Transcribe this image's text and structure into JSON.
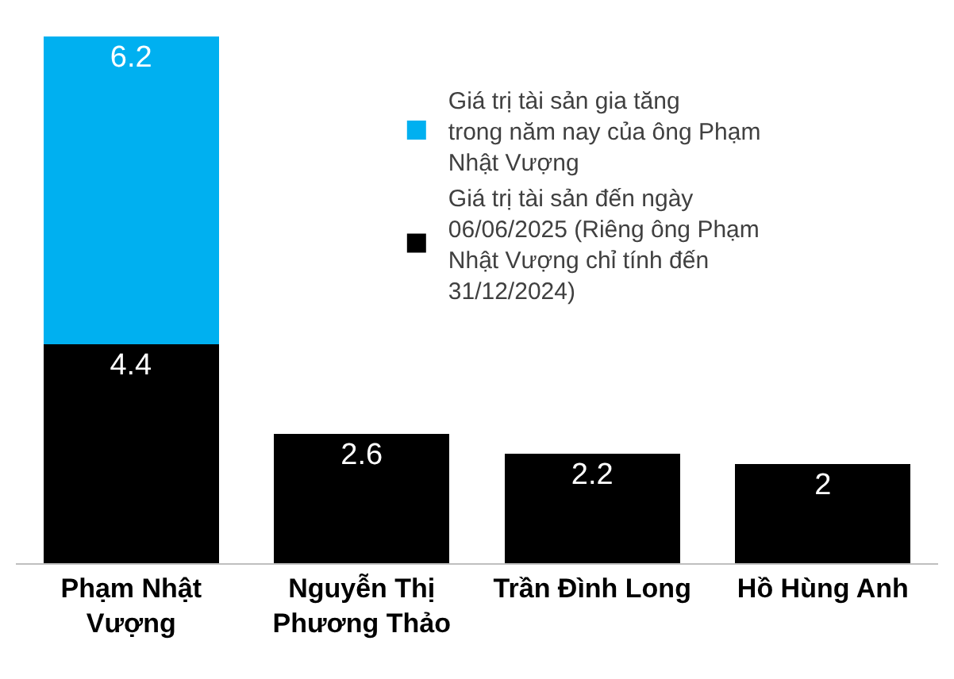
{
  "chart_data": {
    "type": "bar",
    "stacked": true,
    "data_labels": true,
    "legend": "top right",
    "categories": [
      "Phạm Nhật Vượng",
      "Nguyễn Thị Phương Thảo",
      "Trần Đình Long",
      "Hồ Hùng Anh"
    ],
    "series": [
      {
        "name": "Giá trị tài sản đến ngày 06/06/2025 (Riêng ông Phạm Nhật Vượng chỉ tính đến 31/12/2024)",
        "color": "#000000",
        "values": [
          4.4,
          2.6,
          2.2,
          2
        ]
      },
      {
        "name": "Giá trị tài sản gia tăng trong năm nay của ông Phạm Nhật Vượng",
        "color": "#00b0f0",
        "values": [
          6.2,
          null,
          null,
          null
        ]
      }
    ]
  }
}
